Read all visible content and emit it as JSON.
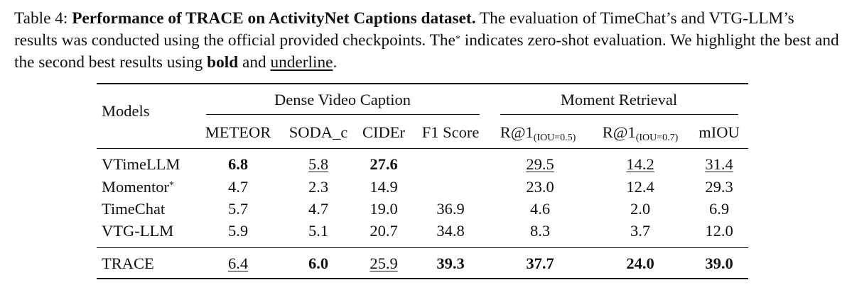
{
  "caption": {
    "label": "Table 4:",
    "title": "Performance of TRACE on ActivityNet Captions dataset.",
    "text1": "The evaluation of TimeChat’s and VTG-LLM’s results was conducted using the official provided checkpoints. The",
    "star": "*",
    "text2": "indicates zero-shot evaluation. We highlight the best and the second best results using",
    "bold_word": "bold",
    "and_word": "and",
    "underline_word": "underline",
    "period": "."
  },
  "table": {
    "models_header": "Models",
    "group_dense": "Dense Video Caption",
    "group_moment": "Moment Retrieval",
    "columns": {
      "meteor": "METEOR",
      "soda": "SODA_c",
      "cider": "CIDEr",
      "f1": "F1 Score",
      "r1_05_main": "R@1",
      "r1_05_sub": "(IOU=0.5)",
      "r1_07_main": "R@1",
      "r1_07_sub": "(IOU=0.7)",
      "miou": "mIOU"
    },
    "rows": [
      {
        "model": "VTimeLLM",
        "meteor": "6.8",
        "soda": "5.8",
        "cider": "27.6",
        "f1": "",
        "r05": "29.5",
        "r07": "14.2",
        "miou": "31.4"
      },
      {
        "model": "Momentor",
        "model_sup": "*",
        "meteor": "4.7",
        "soda": "2.3",
        "cider": "14.9",
        "f1": "",
        "r05": "23.0",
        "r07": "12.4",
        "miou": "29.3"
      },
      {
        "model": "TimeChat",
        "meteor": "5.7",
        "soda": "4.7",
        "cider": "19.0",
        "f1": "36.9",
        "r05": "4.6",
        "r07": "2.0",
        "miou": "6.9"
      },
      {
        "model": "VTG-LLM",
        "meteor": "5.9",
        "soda": "5.1",
        "cider": "20.7",
        "f1": "34.8",
        "r05": "8.3",
        "r07": "3.7",
        "miou": "12.0"
      },
      {
        "model": "TRACE",
        "meteor": "6.4",
        "soda": "6.0",
        "cider": "25.9",
        "f1": "39.3",
        "r05": "37.7",
        "r07": "24.0",
        "miou": "39.0"
      }
    ]
  }
}
